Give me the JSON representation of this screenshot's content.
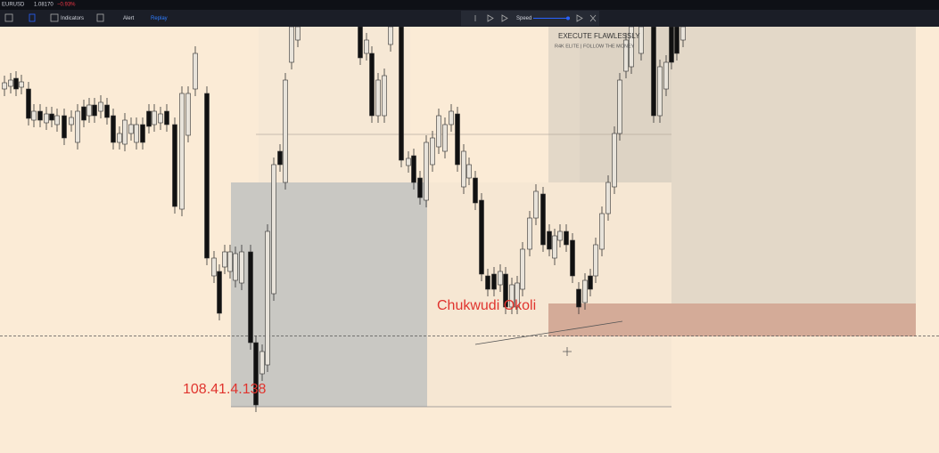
{
  "toolbar": {
    "symbol": "EURUSD",
    "price": "1.08170",
    "change": "−0.93%",
    "indicators": "Indicators",
    "alert": "Alert",
    "replay": "Replay"
  },
  "replay_panel": {
    "speed": "Speed"
  },
  "watermark": {
    "title": "EXECUTE FLAWLESSLY",
    "subtitle": "R4K ELITE | FOLLOW THE MONEY"
  },
  "overlay": {
    "name": "Chukwudi Okoli",
    "ip": "108.41.4.138"
  }
}
